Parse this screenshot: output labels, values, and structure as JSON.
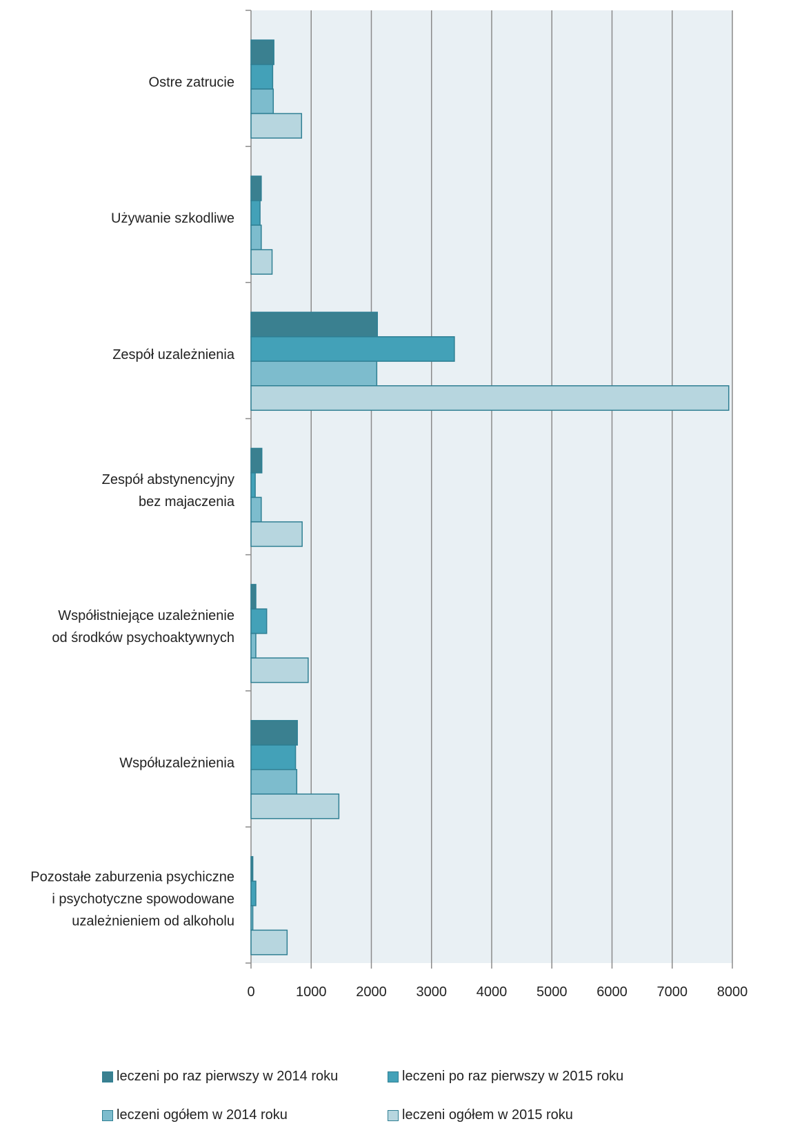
{
  "chart_data": {
    "type": "bar",
    "orientation": "horizontal",
    "categories": [
      [
        "Ostre zatrucie"
      ],
      [
        "Używanie szkodliwe"
      ],
      [
        "Zespół uzależnienia"
      ],
      [
        "Zespół abstynencyjny",
        "bez majaczenia"
      ],
      [
        "Współistniejące uzależnienie",
        "od środków psychoaktywnych"
      ],
      [
        "Współuzależnienia"
      ],
      [
        "Pozostałe zaburzenia psychiczne",
        "i psychotyczne spowodowane",
        "uzależnieniem od alkoholu"
      ]
    ],
    "series": [
      {
        "name": "leczeni po raz pierwszy w 2014 roku",
        "color": "#3a8090",
        "values": [
          380,
          170,
          2100,
          180,
          80,
          770,
          30
        ]
      },
      {
        "name": "leczeni po raz pierwszy w 2015 roku",
        "color": "#43a1b8",
        "values": [
          360,
          150,
          3380,
          70,
          260,
          740,
          80
        ]
      },
      {
        "name": "leczeni ogółem w 2014 roku",
        "color": "#7dbccd",
        "values": [
          370,
          170,
          2090,
          170,
          80,
          760,
          30
        ]
      },
      {
        "name": "leczeni ogółem w 2015 roku",
        "color": "#b7d6df",
        "values": [
          840,
          350,
          7940,
          850,
          950,
          1460,
          600
        ]
      }
    ],
    "xlim": [
      0,
      8000
    ],
    "xticks": [
      0,
      1000,
      2000,
      3000,
      4000,
      5000,
      6000,
      7000,
      8000
    ],
    "grid": true,
    "legend_position": "bottom"
  }
}
